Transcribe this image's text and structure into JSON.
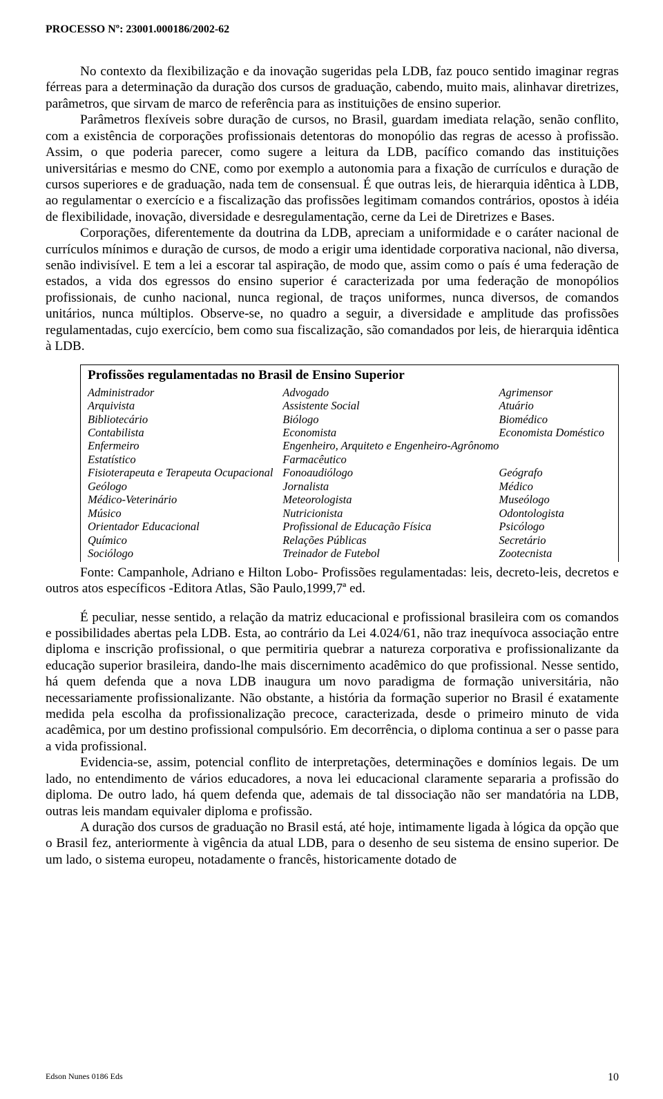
{
  "header": {
    "processo": "PROCESSO Nº: 23001.000186/2002-62"
  },
  "paragraphs": {
    "p1": "No contexto da flexibilização e da inovação sugeridas pela LDB, faz pouco sentido imaginar regras férreas para a determinação da duração dos cursos de graduação, cabendo, muito mais, alinhavar diretrizes, parâmetros, que sirvam de marco de referência para as instituições de ensino superior.",
    "p2": "Parâmetros flexíveis sobre duração de cursos, no Brasil, guardam imediata relação, senão conflito, com a existência de corporações profissionais detentoras do monopólio das regras de acesso à profissão. Assim, o que poderia parecer, como sugere a leitura da LDB, pacífico comando das instituições universitárias e mesmo do CNE, como por exemplo a autonomia para a fixação de currículos e duração de cursos superiores e de graduação, nada tem de consensual. É que outras leis, de hierarquia idêntica à LDB, ao regulamentar o exercício e a fiscalização das profissões legitimam comandos contrários, opostos à idéia de flexibilidade, inovação, diversidade e desregulamentação, cerne da Lei de Diretrizes e Bases.",
    "p3": "Corporações, diferentemente da doutrina da LDB, apreciam a uniformidade e o caráter nacional de currículos mínimos e duração de cursos, de modo a erigir uma identidade corporativa nacional, não diversa, senão indivisível. E tem a lei a escorar tal aspiração, de modo que, assim como o país é uma federação de estados, a vida dos egressos do ensino superior é caracterizada por uma federação de monopólios profissionais, de cunho nacional, nunca regional, de traços uniformes, nunca diversos, de comandos unitários, nunca múltiplos. Observe-se, no quadro a seguir, a diversidade e amplitude das profissões regulamentadas, cujo exercício, bem como sua fiscalização, são comandados por leis, de hierarquia idêntica à LDB.",
    "p4": "É peculiar, nesse sentido, a relação da matriz educacional e profissional brasileira com os comandos e possibilidades abertas pela LDB. Esta, ao contrário da Lei 4.024/61, não traz inequívoca associação entre diploma e inscrição profissional, o que permitiria quebrar a natureza corporativa e profissionalizante da educação superior brasileira, dando-lhe mais discernimento acadêmico do que profissional. Nesse sentido, há quem defenda que a nova LDB inaugura um novo paradigma de formação universitária, não necessariamente profissionalizante. Não obstante, a história da formação superior no Brasil é exatamente medida pela escolha da profissionalização precoce, caracterizada, desde o primeiro minuto de vida acadêmica, por um destino profissional compulsório. Em decorrência, o diploma continua a ser o passe para a vida profissional.",
    "p5": "Evidencia-se, assim, potencial conflito de interpretações, determinações e domínios legais. De um lado, no entendimento de vários educadores, a nova lei educacional claramente separaria a profissão do diploma. De outro lado, há quem defenda que, ademais de tal dissociação não ser mandatória na LDB, outras leis mandam equivaler diploma e profissão.",
    "p6": "A duração dos cursos de graduação no Brasil está, até hoje, intimamente ligada à lógica da opção que o Brasil fez, anteriormente à vigência da atual LDB, para o desenho de seu sistema de ensino superior. De um lado, o sistema europeu, notadamente o francês, historicamente dotado de"
  },
  "profTable": {
    "title": "Profissões regulamentadas no Brasil de Ensino Superior",
    "rows": [
      [
        "Administrador",
        "Advogado",
        "Agrimensor"
      ],
      [
        "Arquivista",
        "Assistente Social",
        "Atuário"
      ],
      [
        "Bibliotecário",
        "Biólogo",
        "Biomédico"
      ],
      [
        "Contabilista",
        "Economista",
        "Economista Doméstico"
      ],
      [
        "Enfermeiro",
        "Engenheiro, Arquiteto e Engenheiro-Agrônomo",
        ""
      ],
      [
        "Estatístico",
        "Farmacêutico",
        ""
      ],
      [
        "Fisioterapeuta e Terapeuta Ocupacional",
        "Fonoaudiólogo",
        "Geógrafo"
      ],
      [
        "Geólogo",
        "Jornalista",
        "Médico"
      ],
      [
        "Médico-Veterinário",
        "Meteorologista",
        "Museólogo"
      ],
      [
        "Músico",
        "Nutricionista",
        "Odontologista"
      ],
      [
        "Orientador Educacional",
        "Profissional de Educação Física",
        "Psicólogo"
      ],
      [
        "Químico",
        "Relações Públicas",
        "Secretário"
      ],
      [
        "Sociólogo",
        "Treinador de Futebol",
        "Zootecnista"
      ]
    ],
    "fonte": "Fonte: Campanhole, Adriano e Hilton Lobo- Profissões regulamentadas: leis, decreto-leis, decretos e outros atos específicos -Editora Atlas, São Paulo,1999,7ª ed."
  },
  "footer": {
    "left": "Edson Nunes 0186 Eds",
    "page": "10"
  }
}
